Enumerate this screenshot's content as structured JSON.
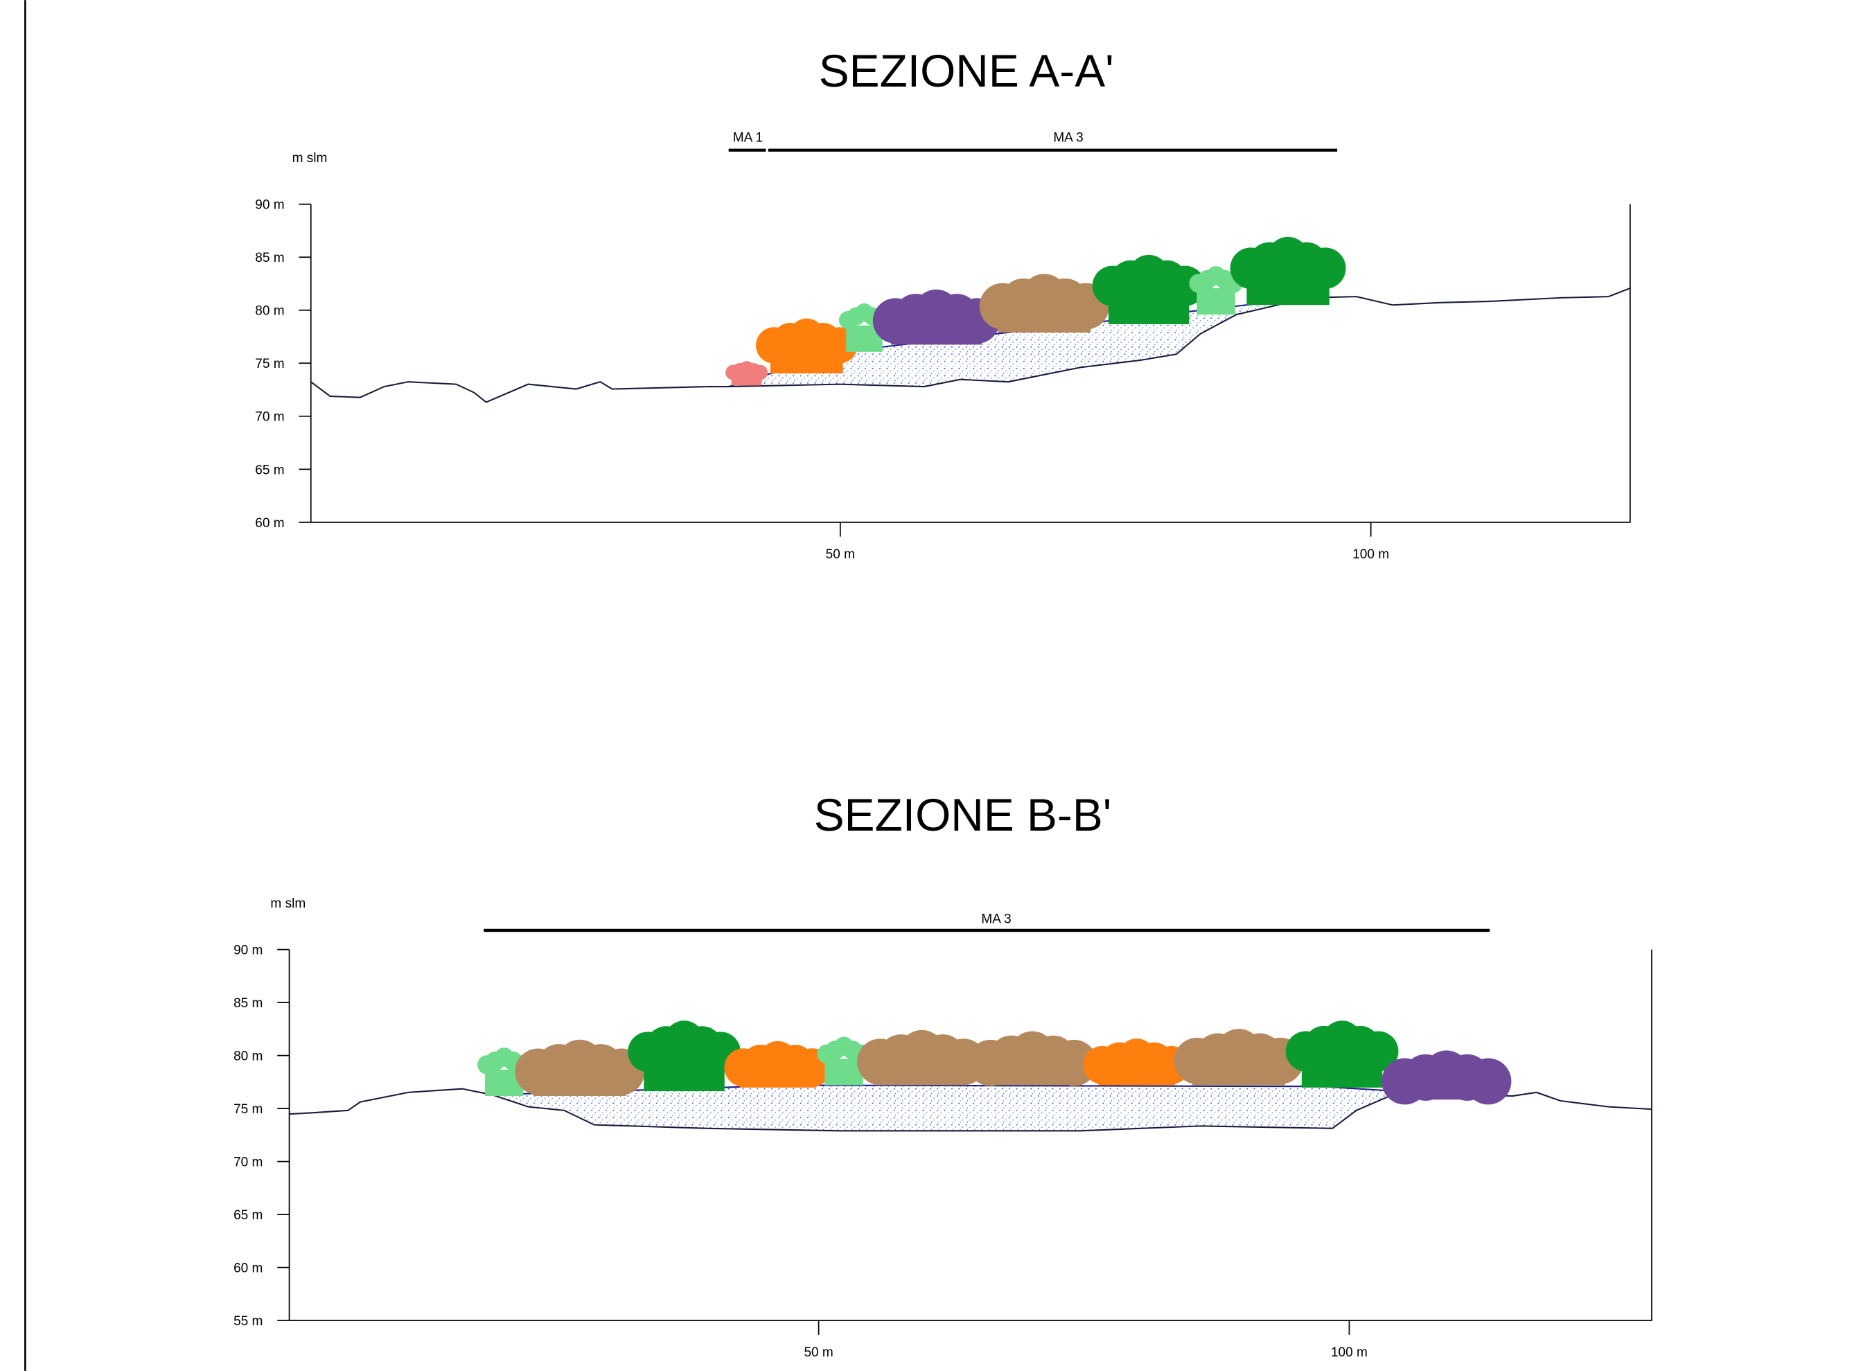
{
  "sections": [
    {
      "title": "SEZIONE A-A'",
      "axis_label": "m slm",
      "yticks": [
        "90 m",
        "85 m",
        "80 m",
        "75 m",
        "70 m",
        "65 m",
        "60 m"
      ],
      "xticks": [
        "50 m",
        "100 m"
      ],
      "bars": [
        {
          "label": "MA 1"
        },
        {
          "label": "MA 3"
        }
      ]
    },
    {
      "title": "SEZIONE B-B'",
      "axis_label": "m slm",
      "yticks": [
        "90 m",
        "85 m",
        "80 m",
        "75 m",
        "70 m",
        "65 m",
        "60 m",
        "55 m"
      ],
      "xticks": [
        "50 m",
        "100 m"
      ],
      "bars": [
        {
          "label": "MA 3"
        }
      ]
    }
  ]
}
